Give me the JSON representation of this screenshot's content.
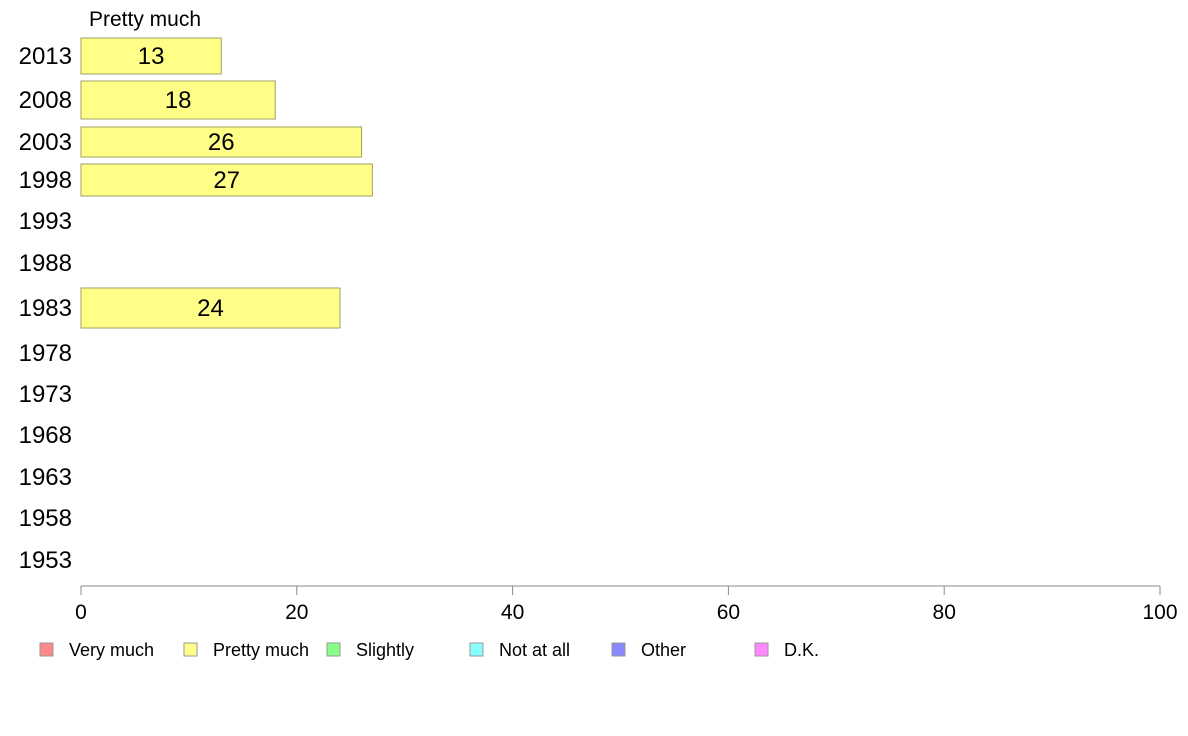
{
  "chart_data": {
    "type": "bar",
    "orientation": "horizontal",
    "title": "Pretty much",
    "categories": [
      "2013",
      "2008",
      "2003",
      "1998",
      "1993",
      "1988",
      "1983",
      "1978",
      "1973",
      "1968",
      "1963",
      "1958",
      "1953"
    ],
    "series": [
      {
        "name": "Pretty much",
        "color": "#ffff88",
        "values": [
          13,
          18,
          26,
          27,
          null,
          null,
          24,
          null,
          null,
          null,
          null,
          null,
          null
        ]
      }
    ],
    "xlim": [
      0,
      100
    ],
    "xticks": [
      0,
      20,
      40,
      60,
      80,
      100
    ],
    "grid": false,
    "legend_position": "bottom-left",
    "legend": [
      {
        "label": "Very much",
        "color": "#ff8888"
      },
      {
        "label": "Pretty much",
        "color": "#ffff88"
      },
      {
        "label": "Slightly",
        "color": "#88ff88"
      },
      {
        "label": "Not at all",
        "color": "#88ffff"
      },
      {
        "label": "Other",
        "color": "#8888ff"
      },
      {
        "label": "D.K.",
        "color": "#ff88ff"
      }
    ]
  }
}
